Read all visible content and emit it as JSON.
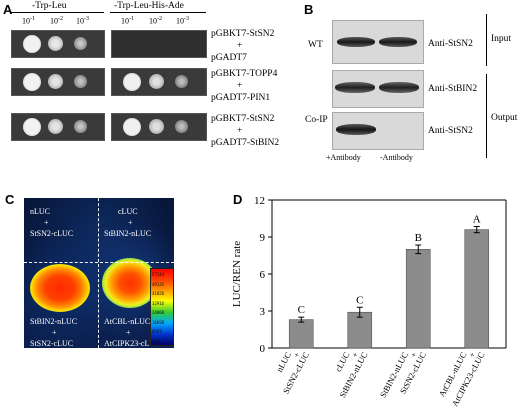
{
  "panel_a": {
    "label": "A",
    "col1_header": "-Trp-Leu",
    "col2_header": "-Trp-Leu-His-Ade",
    "dilutions": [
      "10^-1",
      "10^-2",
      "10^-3"
    ],
    "rows": [
      {
        "line1": "pGBKT7-StSN2",
        "line2": "+",
        "line3": "pGADT7"
      },
      {
        "line1": "pGBKT7-TOPP4",
        "line2": "+",
        "line3": "pGADT7-PIN1"
      },
      {
        "line1": "pGBKT7-StSN2",
        "line2": "+",
        "line3": "pGADT7-StBIN2"
      }
    ]
  },
  "panel_b": {
    "label": "B",
    "wt_label": "WT",
    "coip_label": "Co-IP",
    "blot_labels": [
      "Anti-StSN2",
      "Anti-StBIN2",
      "Anti-StSN2"
    ],
    "input_label": "Input",
    "output_label": "Output",
    "lane_labels": [
      "+Antibody",
      "-Antibody"
    ]
  },
  "panel_c": {
    "label": "C",
    "tl": [
      "nLUC",
      "+",
      "StSN2-cLUC"
    ],
    "tr": [
      "cLUC",
      "+",
      "StBIN2-nLUC"
    ],
    "bl": [
      "StBIN2-nLUC",
      "+",
      "StSN2-cLUC"
    ],
    "br": [
      "AtCBL-nLUC",
      "+",
      "AtCIPK23-cLUC"
    ],
    "scale": [
      "57244",
      "49135",
      "41026",
      "32916",
      "24808",
      "16698",
      "8593",
      "484"
    ]
  },
  "panel_d": {
    "label": "D"
  },
  "chart_data": {
    "type": "bar",
    "categories": [
      "nLUC + StSN2-cLUC",
      "cLUC + StBIN2-nLUC",
      "StBIN2-nLUC + StSN2-cLUC",
      "AtCBL-nLUC + AtCIPK23-cLUC"
    ],
    "category_lines": [
      [
        "nLUC",
        "+",
        "StSN2-cLUC"
      ],
      [
        "cLUC",
        "+",
        "StBIN2-nLUC"
      ],
      [
        "StBIN2-nLUC",
        "+",
        "StSN2-cLUC"
      ],
      [
        "AtCBL-nLUC",
        "+",
        "AtCIPK23-cLUC"
      ]
    ],
    "values": [
      2.3,
      2.9,
      8.0,
      9.6
    ],
    "errors": [
      0.2,
      0.4,
      0.35,
      0.25
    ],
    "letters": [
      "C",
      "C",
      "B",
      "A"
    ],
    "ylabel": "LUC/REN rate",
    "ylim": [
      0,
      12
    ],
    "yticks": [
      0,
      3,
      6,
      9,
      12
    ],
    "bar_color": "#8c8c8c"
  }
}
